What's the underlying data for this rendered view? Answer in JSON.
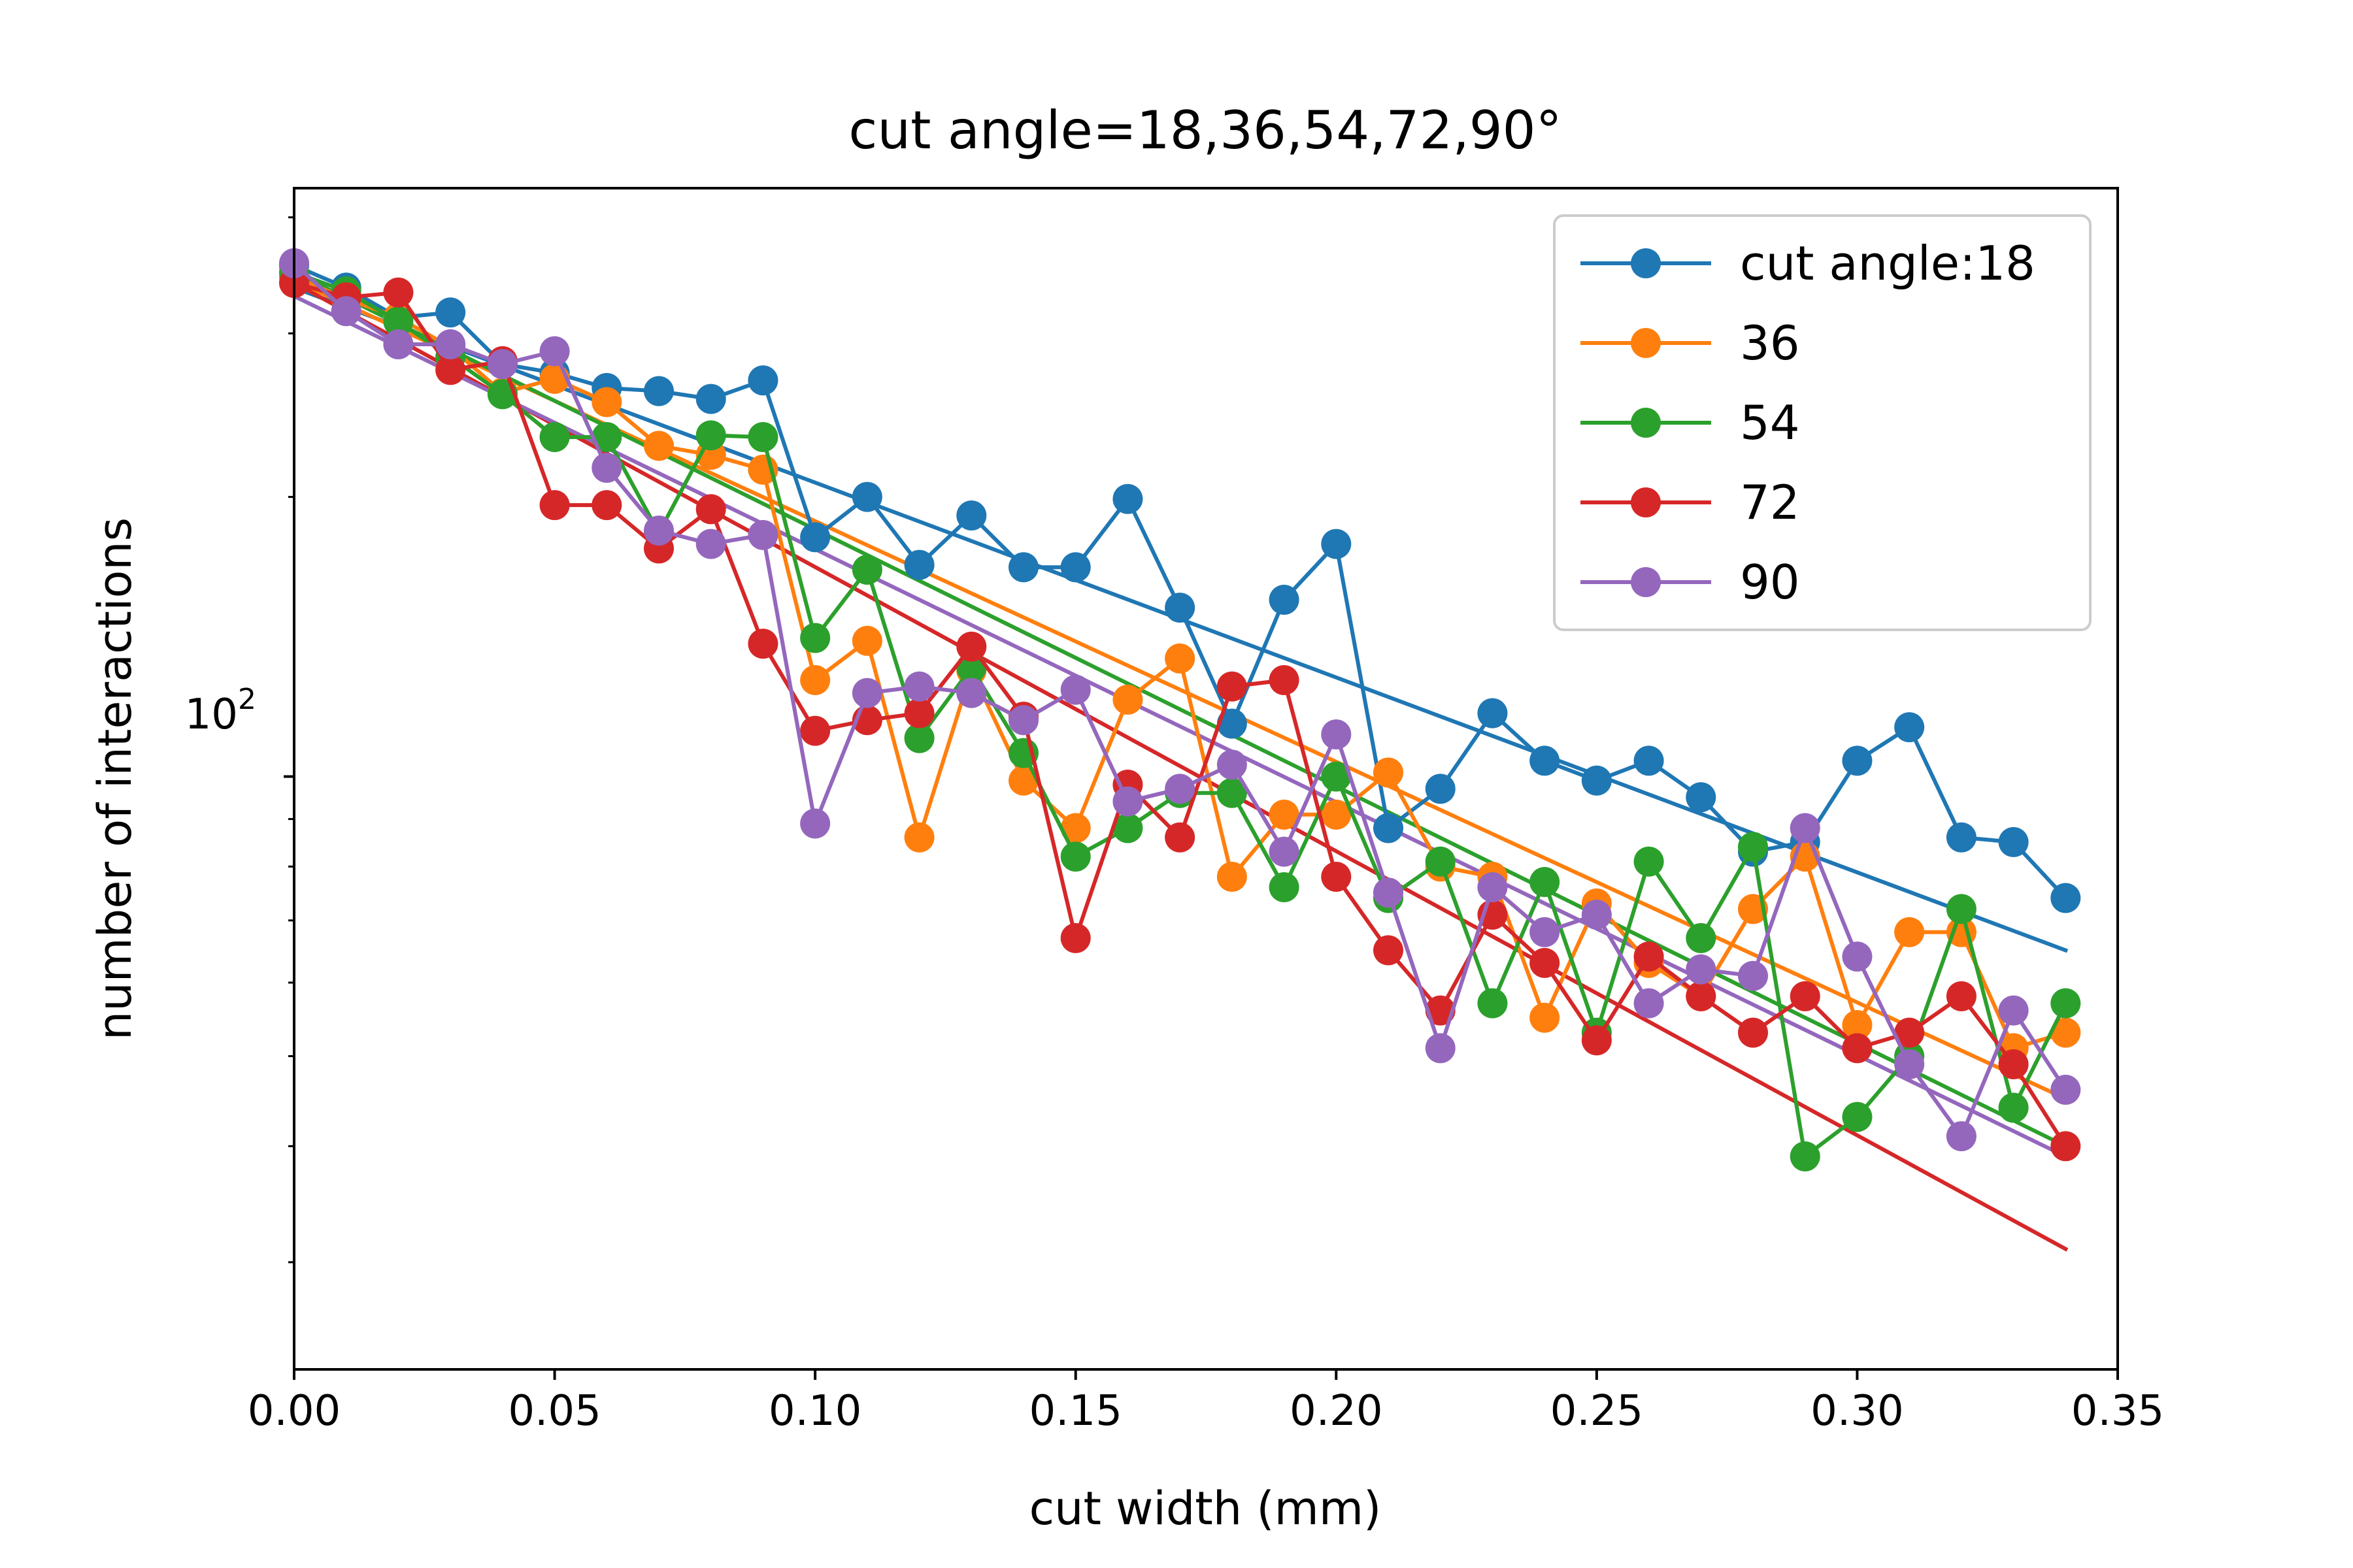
{
  "chart_data": {
    "type": "line",
    "title": "cut angle=18,36,54,72,90°",
    "xlabel": "cut width (mm)",
    "ylabel": "number of interactions",
    "xlim": [
      0.0,
      0.35
    ],
    "ylim": [
      23,
      430
    ],
    "yscale": "log",
    "xticks": [
      "0.00",
      "0.05",
      "0.10",
      "0.15",
      "0.20",
      "0.25",
      "0.30",
      "0.35"
    ],
    "ytick_major_label": "10",
    "ytick_major_exponent": "2",
    "grid": false,
    "legend_position": "top-right",
    "x": [
      0.0,
      0.01,
      0.02,
      0.03,
      0.04,
      0.05,
      0.06,
      0.07,
      0.08,
      0.09,
      0.1,
      0.11,
      0.12,
      0.13,
      0.14,
      0.15,
      0.16,
      0.17,
      0.18,
      0.19,
      0.2,
      0.21,
      0.22,
      0.23,
      0.24,
      0.25,
      0.26,
      0.27,
      0.28,
      0.29,
      0.3,
      0.31,
      0.32,
      0.33,
      0.34
    ],
    "series": [
      {
        "name": "cut angle:18",
        "color": "#1f77b4",
        "values": [
          355,
          336,
          312,
          316,
          278,
          272,
          262,
          260,
          255,
          267,
          181,
          200,
          169,
          191,
          168,
          168,
          199,
          152,
          114,
          155,
          178,
          88,
          97,
          117,
          104,
          99,
          104,
          95,
          83,
          85,
          104,
          113,
          86,
          85,
          74
        ],
        "fit": [
          336,
          65
        ]
      },
      {
        "name": "36",
        "color": "#ff7f0e",
        "values": [
          345,
          327,
          312,
          290,
          259,
          268,
          253,
          227,
          222,
          214,
          127,
          140,
          86,
          130,
          99,
          88,
          121,
          134,
          78,
          91,
          91,
          101,
          80,
          78,
          55,
          73,
          63,
          58,
          72,
          82,
          54,
          68,
          68,
          51,
          53
        ],
        "fit": [
          342,
          45
        ]
      },
      {
        "name": "54",
        "color": "#2ca02c",
        "values": [
          349,
          333,
          309,
          283,
          258,
          232,
          232,
          183,
          233,
          232,
          141,
          167,
          110,
          131,
          106,
          82,
          88,
          96,
          96,
          76,
          100,
          74,
          81,
          57,
          77,
          53,
          81,
          67,
          84,
          39,
          43,
          50,
          72,
          44,
          57
        ],
        "fit": [
          349,
          40
        ]
      },
      {
        "name": "72",
        "color": "#d62728",
        "values": [
          340,
          328,
          332,
          274,
          280,
          196,
          196,
          176,
          194,
          139,
          112,
          115,
          117,
          138,
          116,
          67,
          98,
          86,
          125,
          127,
          78,
          65,
          56,
          71,
          63,
          52,
          64,
          58,
          53,
          58,
          51,
          53,
          58,
          49,
          40
        ],
        "fit": [
          340,
          31
        ]
      },
      {
        "name": "90",
        "color": "#9467bd",
        "values": [
          357,
          317,
          292,
          292,
          278,
          287,
          215,
          184,
          178,
          182,
          89,
          123,
          125,
          123,
          115,
          124,
          94,
          97,
          103,
          83,
          111,
          75,
          51,
          76,
          68,
          71,
          57,
          62,
          61,
          88,
          64,
          49,
          41,
          56,
          46
        ],
        "fit": [
          329,
          39
        ]
      }
    ]
  }
}
